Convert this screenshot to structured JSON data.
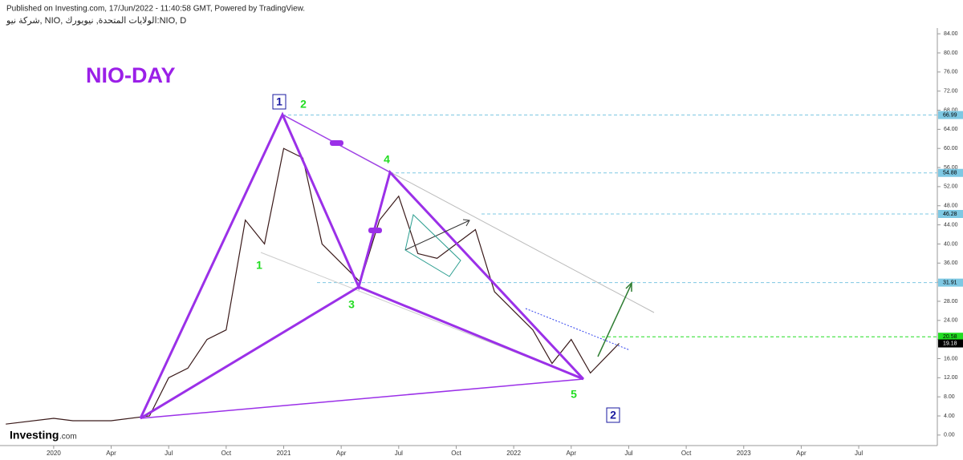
{
  "header": {
    "published": "Published on Investing.com, 17/Jun/2022 - 11:40:58 GMT, Powered by TradingView.",
    "symbol": "شركة نيو, NIO, الولايات المتحدة, نيويورك:NIO, D",
    "logo": "Investing",
    "logo_suffix": ".com"
  },
  "chart_data": {
    "type": "line",
    "title": "NIO-DAY",
    "x": [
      -2.5,
      0,
      1,
      3,
      5,
      6,
      7,
      8,
      9,
      10,
      11,
      12,
      13,
      14,
      15,
      16,
      17,
      18,
      19,
      20,
      21,
      22,
      23,
      24,
      25,
      26,
      27,
      28,
      29.5
    ],
    "series": [
      {
        "name": "NIO",
        "color": "#3a1a1a",
        "values": [
          2.3,
          3.5,
          3.0,
          3.0,
          4.0,
          12,
          14,
          20,
          22,
          45,
          40,
          60,
          58,
          40,
          36,
          32,
          45,
          50,
          38,
          37,
          40,
          43,
          30,
          26,
          22,
          15,
          20,
          13,
          19.18
        ]
      }
    ],
    "xlim": [
      -2.8,
      46.1
    ],
    "xticks": [
      {
        "value": 0,
        "label": "2020"
      },
      {
        "value": 3,
        "label": "Apr"
      },
      {
        "value": 6,
        "label": "Jul"
      },
      {
        "value": 9,
        "label": "Oct"
      },
      {
        "value": 12,
        "label": "2021"
      },
      {
        "value": 15,
        "label": "Apr"
      },
      {
        "value": 18,
        "label": "Jul"
      },
      {
        "value": 21,
        "label": "Oct"
      },
      {
        "value": 24,
        "label": "2022"
      },
      {
        "value": 27,
        "label": "Apr"
      },
      {
        "value": 30,
        "label": "Jul"
      },
      {
        "value": 33,
        "label": "Oct"
      },
      {
        "value": 36,
        "label": "2023"
      },
      {
        "value": 39,
        "label": "Apr"
      },
      {
        "value": 42,
        "label": "Jul"
      }
    ],
    "ylim": [
      -1.7,
      85.2
    ],
    "yticks": [
      {
        "value": 0,
        "label": "0.00"
      },
      {
        "value": 4,
        "label": "4.00"
      },
      {
        "value": 8,
        "label": "8.00"
      },
      {
        "value": 12,
        "label": "12.00"
      },
      {
        "value": 16,
        "label": "16.00"
      },
      {
        "value": 20,
        "label": "20.00"
      },
      {
        "value": 24,
        "label": "24.00"
      },
      {
        "value": 28,
        "label": "28.00"
      },
      {
        "value": 32,
        "label": "32.00"
      },
      {
        "value": 36,
        "label": "36.00"
      },
      {
        "value": 40,
        "label": "40.00"
      },
      {
        "value": 44,
        "label": "44.00"
      },
      {
        "value": 48,
        "label": "48.00"
      },
      {
        "value": 52,
        "label": "52.00"
      },
      {
        "value": 56,
        "label": "56.00"
      },
      {
        "value": 60,
        "label": "60.00"
      },
      {
        "value": 64,
        "label": "64.00"
      },
      {
        "value": 68,
        "label": "68.00"
      },
      {
        "value": 72,
        "label": "72.00"
      },
      {
        "value": 76,
        "label": "76.00"
      },
      {
        "value": 80,
        "label": "80.00"
      },
      {
        "value": 84,
        "label": "84.00"
      }
    ],
    "price_levels": [
      {
        "value": 66.99,
        "label": "66.99",
        "color": "#7ec8e3"
      },
      {
        "value": 54.88,
        "label": "54.88",
        "color": "#7ec8e3"
      },
      {
        "value": 46.28,
        "label": "46.28",
        "color": "#7ec8e3"
      },
      {
        "value": 31.91,
        "label": "31.91",
        "color": "#7ec8e3"
      },
      {
        "value": 20.58,
        "label": "20.58",
        "color": "#22dd22"
      },
      {
        "value": 19.18,
        "label": "19.18",
        "color": "#000000"
      }
    ],
    "annotations": [
      "1",
      "2",
      "4",
      "1",
      "3",
      "5",
      "2"
    ]
  }
}
